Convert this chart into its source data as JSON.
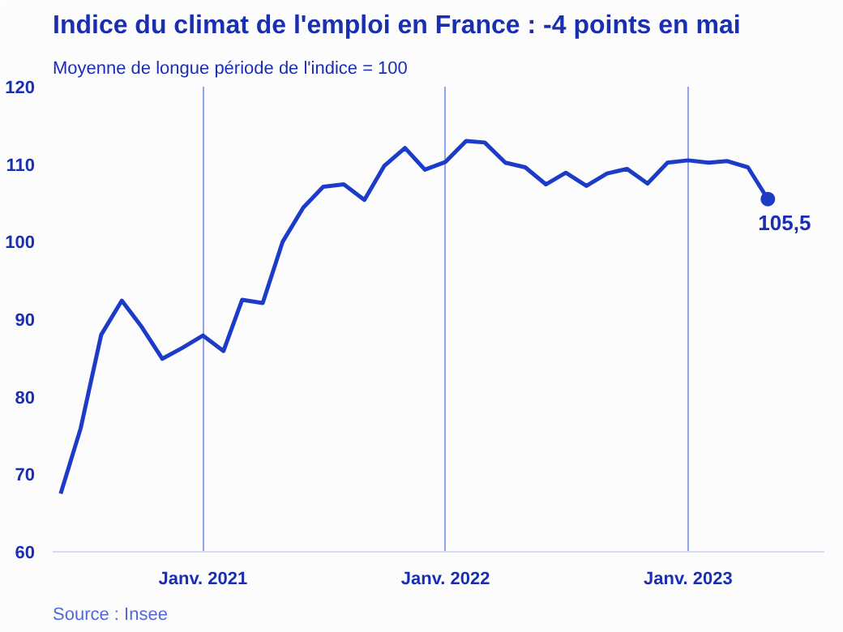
{
  "chart_data": {
    "type": "line",
    "title": "Indice du climat de l'emploi en France : -4 points en mai",
    "subtitle": "Moyenne de longue période de l'indice = 100",
    "x": [
      "2020-06",
      "2020-07",
      "2020-08",
      "2020-09",
      "2020-10",
      "2020-11",
      "2020-12",
      "2021-01",
      "2021-02",
      "2021-03",
      "2021-04",
      "2021-05",
      "2021-06",
      "2021-07",
      "2021-08",
      "2021-09",
      "2021-10",
      "2021-11",
      "2021-12",
      "2022-01",
      "2022-02",
      "2022-03",
      "2022-04",
      "2022-05",
      "2022-06",
      "2022-07",
      "2022-08",
      "2022-09",
      "2022-10",
      "2022-11",
      "2022-12",
      "2023-01",
      "2023-02",
      "2023-03",
      "2023-04",
      "2023-05"
    ],
    "series": [
      {
        "color": "#1c3cc8",
        "values": [
          67.5,
          75.9,
          88.0,
          92.4,
          89.0,
          84.9,
          86.3,
          87.9,
          85.9,
          92.5,
          92.1,
          100.0,
          104.4,
          107.1,
          107.4,
          105.4,
          109.8,
          112.1,
          109.3,
          110.3,
          113.0,
          112.8,
          110.2,
          109.6,
          107.4,
          108.9,
          107.2,
          108.8,
          109.4,
          107.5,
          110.2,
          110.5,
          110.2,
          110.4,
          109.6,
          105.5
        ]
      }
    ],
    "xticks": [
      {
        "value": "2021-01",
        "label": "Janv. 2021"
      },
      {
        "value": "2022-01",
        "label": "Janv. 2022"
      },
      {
        "value": "2023-01",
        "label": "Janv. 2023"
      }
    ],
    "xlim": [
      "2020-05-20",
      "2023-07-25"
    ],
    "ylim": [
      60,
      120
    ],
    "yticks": [
      60,
      70,
      80,
      90,
      100,
      110,
      120
    ],
    "grid": "x",
    "legend": false,
    "marker": "none",
    "line_style": "solid",
    "annotations": [
      {
        "text": "105,5",
        "x": "2023-05",
        "y": 105.5
      },
      "Source : Insee"
    ]
  }
}
